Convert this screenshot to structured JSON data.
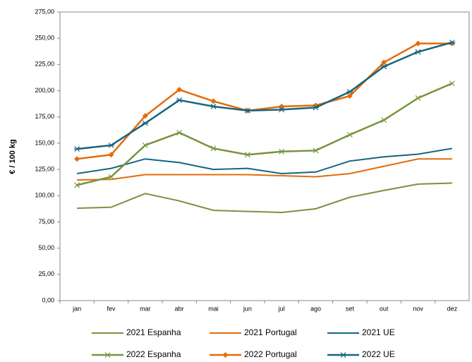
{
  "chart_data": {
    "type": "line",
    "y_label": "€ / 100 kg",
    "categories": [
      "jan",
      "fev",
      "mar",
      "abr",
      "mai",
      "jun",
      "jul",
      "ago",
      "set",
      "out",
      "nov",
      "dez"
    ],
    "ylim": [
      0,
      275
    ],
    "yticks": [
      {
        "value": 0,
        "label": "0,00"
      },
      {
        "value": 25,
        "label": "25,00"
      },
      {
        "value": 50,
        "label": "50,00"
      },
      {
        "value": 75,
        "label": "75,00"
      },
      {
        "value": 100,
        "label": "100,00"
      },
      {
        "value": 125,
        "label": "125,00"
      },
      {
        "value": 150,
        "label": "150,00"
      },
      {
        "value": 175,
        "label": "175,00"
      },
      {
        "value": 200,
        "label": "200,00"
      },
      {
        "value": 225,
        "label": "225,00"
      },
      {
        "value": 250,
        "label": "250,00"
      },
      {
        "value": 275,
        "label": "275,00"
      }
    ],
    "grid": false,
    "series": [
      {
        "name": "2021 Espanha",
        "color": "#77933c",
        "marker": "none",
        "values": [
          88,
          89,
          102,
          95,
          86,
          85,
          84,
          87.5,
          98.5,
          105,
          111,
          112
        ]
      },
      {
        "name": "2021 Portugal",
        "color": "#e46c0a",
        "marker": "none",
        "values": [
          115,
          115.5,
          120,
          120,
          120,
          120,
          119,
          118,
          121,
          128,
          135,
          135
        ]
      },
      {
        "name": "2021 UE",
        "color": "#17657d",
        "marker": "none",
        "values": [
          121,
          126,
          135,
          131.5,
          125,
          126,
          121,
          122.5,
          133,
          137,
          139.5,
          145
        ]
      },
      {
        "name": "2022 Espanha",
        "color": "#77933c",
        "marker": "x",
        "values": [
          110,
          118,
          148,
          160,
          145,
          139,
          142,
          143,
          158,
          172,
          193,
          207
        ]
      },
      {
        "name": "2022 Portugal",
        "color": "#e46c0a",
        "marker": "diamond",
        "values": [
          135,
          139,
          176,
          201,
          190,
          181,
          185,
          186,
          195,
          227,
          245,
          245
        ]
      },
      {
        "name": "2022 UE",
        "color": "#17657d",
        "marker": "asterisk",
        "values": [
          144.5,
          148,
          169,
          191,
          185,
          181,
          182,
          184,
          199,
          223,
          237,
          246
        ]
      }
    ]
  }
}
